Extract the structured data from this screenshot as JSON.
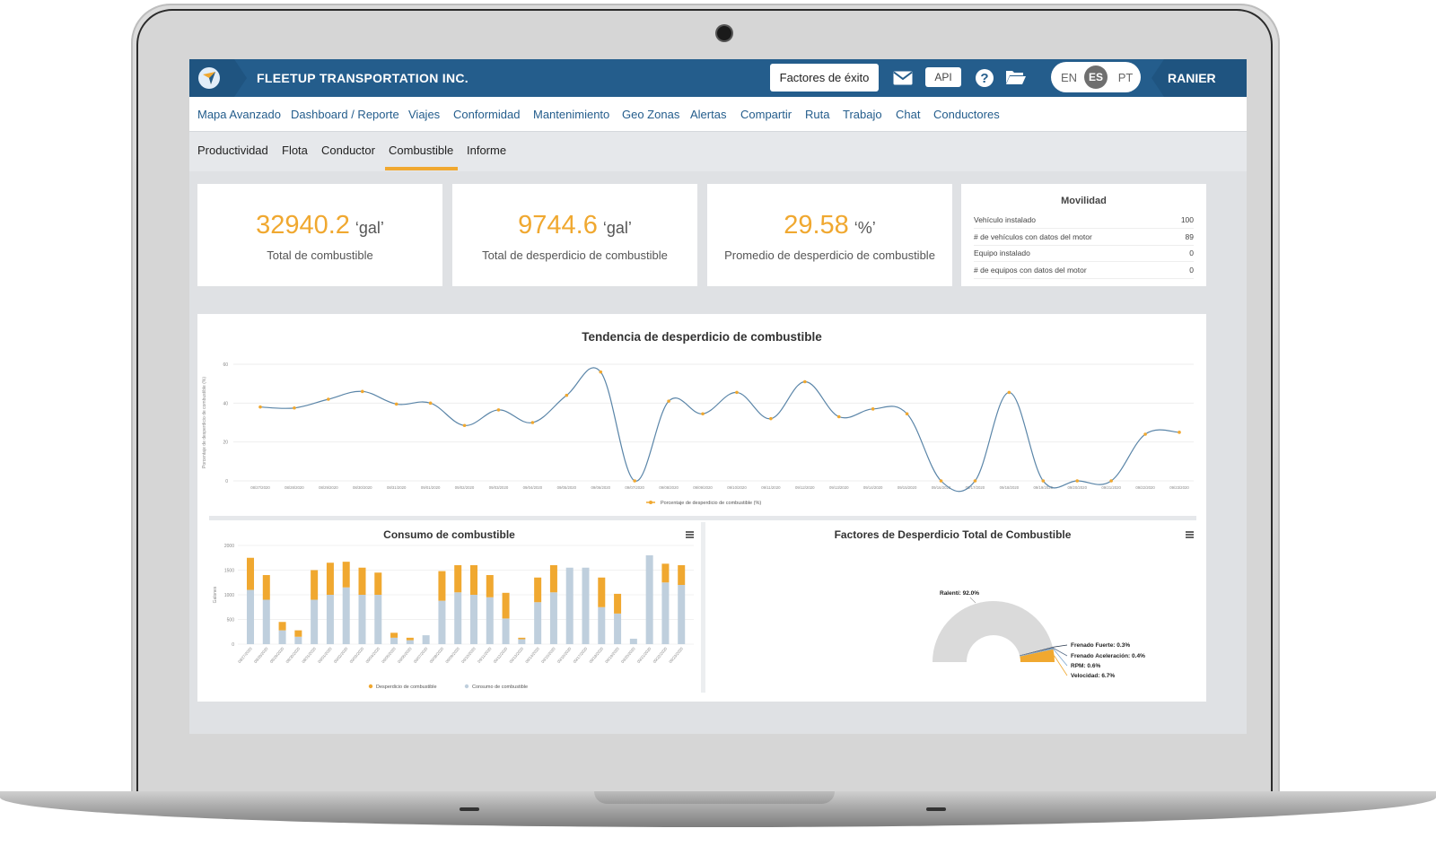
{
  "header": {
    "company": "FLEETUP TRANSPORTATION INC.",
    "factors_button": "Factores de éxito",
    "api_button": "API",
    "languages": [
      "EN",
      "ES",
      "PT"
    ],
    "active_language": "ES",
    "user": "RANIER"
  },
  "main_nav": [
    "Mapa Avanzado",
    "Dashboard / Reporte",
    "Viajes",
    "Conformidad",
    "Mantenimiento",
    "Geo Zonas",
    "Alertas",
    "Compartir",
    "Ruta",
    "Trabajo",
    "Chat",
    "Conductores"
  ],
  "sub_nav": [
    "Productividad",
    "Flota",
    "Conductor",
    "Combustible",
    "Informe"
  ],
  "active_sub_nav": "Combustible",
  "stats": [
    {
      "value": "32940.2",
      "unit": "‘gal’",
      "label": "Total de combustible"
    },
    {
      "value": "9744.6",
      "unit": "‘gal’",
      "label": "Total de desperdicio de combustible"
    },
    {
      "value": "29.58",
      "unit": "‘%’",
      "label": "Promedio de desperdicio de combustible"
    }
  ],
  "mobility": {
    "title": "Movilidad",
    "rows": [
      {
        "label": "Vehículo instalado",
        "value": "100"
      },
      {
        "label": "# de vehículos con datos del motor",
        "value": "89"
      },
      {
        "label": "Equipo instalado",
        "value": "0"
      },
      {
        "label": "# de equipos con datos del motor",
        "value": "0"
      }
    ]
  },
  "chart_data": [
    {
      "type": "line",
      "title": "Tendencia de desperdicio de combustible",
      "ylabel": "Porcentaje de desperdicio de combustible (%)",
      "ylim": [
        0,
        60
      ],
      "yticks": [
        0,
        20,
        40,
        60
      ],
      "x": [
        "08/27/2020",
        "08/28/2020",
        "08/29/2020",
        "08/30/2020",
        "08/31/2020",
        "09/01/2020",
        "09/02/2020",
        "09/03/2020",
        "09/04/2020",
        "09/05/2020",
        "09/06/2020",
        "09/07/2020",
        "09/08/2020",
        "09/09/2020",
        "09/10/2020",
        "09/11/2020",
        "09/12/2020",
        "09/13/2020",
        "09/14/2020",
        "09/15/2020",
        "09/16/2020",
        "09/17/2020",
        "09/18/2020",
        "09/19/2020",
        "09/20/2020",
        "09/21/2020",
        "09/22/2020",
        "09/23/2020"
      ],
      "series": [
        {
          "name": "Porcentaje de desperdicio de combustible (%)",
          "color": "#f0a830",
          "line_color": "#5a85a8",
          "values": [
            38,
            37.5,
            42,
            46,
            39.5,
            40,
            28.5,
            36.5,
            30,
            44,
            56,
            0,
            41,
            34.5,
            45.5,
            32,
            51,
            33,
            37,
            34.5,
            0,
            0,
            45.5,
            0,
            0,
            0,
            24,
            25
          ]
        }
      ],
      "legend": "bottom-center"
    },
    {
      "type": "bar",
      "stacked": true,
      "title": "Consumo de combustible",
      "ylabel": "Galones",
      "ylim": [
        0,
        2000
      ],
      "yticks": [
        0,
        500,
        1000,
        1500,
        2000
      ],
      "categories": [
        "08/27/2020",
        "08/28/2020",
        "08/29/2020",
        "08/30/2020",
        "08/31/2020",
        "09/01/2020",
        "09/02/2020",
        "09/03/2020",
        "09/04/2020",
        "09/05/2020",
        "09/06/2020",
        "09/07/2020",
        "09/08/2020",
        "09/09/2020",
        "09/10/2020",
        "09/11/2020",
        "09/12/2020",
        "09/13/2020",
        "09/14/2020",
        "09/15/2020",
        "09/16/2020",
        "09/17/2020",
        "09/18/2020",
        "09/19/2020",
        "09/20/2020",
        "09/21/2020",
        "09/22/2020",
        "09/23/2020"
      ],
      "series": [
        {
          "name": "Consumo de combustible",
          "color": "#bfcfdd",
          "values": [
            1100,
            900,
            280,
            150,
            900,
            1000,
            1150,
            1000,
            1000,
            130,
            80,
            180,
            880,
            1050,
            1000,
            950,
            520,
            100,
            850,
            1050,
            1550,
            1550,
            750,
            620,
            110,
            1800,
            1250,
            1200
          ]
        },
        {
          "name": "Desperdicio de combustible",
          "color": "#f0a830",
          "values": [
            650,
            500,
            170,
            130,
            600,
            650,
            520,
            550,
            450,
            100,
            50,
            0,
            600,
            550,
            600,
            450,
            520,
            30,
            500,
            550,
            0,
            0,
            600,
            400,
            0,
            0,
            380,
            400
          ]
        }
      ],
      "legend": "bottom-center"
    },
    {
      "type": "pie",
      "semi_donut": true,
      "title": "Factores de Desperdicio Total de Combustible",
      "slices": [
        {
          "label": "Ralentí: 92.0%",
          "value": 92.0,
          "color": "#dadada"
        },
        {
          "label": "Frenado Fuerte: 0.3%",
          "value": 0.3,
          "color": "#24344a"
        },
        {
          "label": "Frenado Aceleración: 0.4%",
          "value": 0.4,
          "color": "#5b6f8a"
        },
        {
          "label": "RPM: 0.6%",
          "value": 0.6,
          "color": "#7da6cf"
        },
        {
          "label": "Velocidad: 6.7%",
          "value": 6.7,
          "color": "#f0a830"
        }
      ]
    }
  ]
}
